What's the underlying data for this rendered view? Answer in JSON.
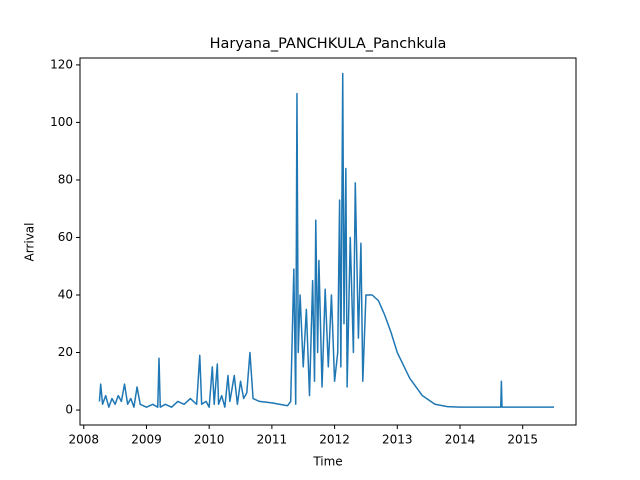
{
  "chart_data": {
    "type": "line",
    "title": "Haryana_PANCHKULA_Panchkula",
    "xlabel": "Time",
    "ylabel": "Arrival",
    "color": "#1f77b4",
    "grid": false,
    "xlim": [
      2007.94,
      2015.85
    ],
    "xticks": [
      2008,
      2009,
      2010,
      2011,
      2012,
      2013,
      2014,
      2015
    ],
    "ylim": [
      -5.2,
      122.4
    ],
    "yticks": [
      0,
      20,
      40,
      60,
      80,
      100,
      120
    ],
    "x": [
      2008.25,
      2008.27,
      2008.3,
      2008.35,
      2008.4,
      2008.45,
      2008.5,
      2008.55,
      2008.6,
      2008.65,
      2008.7,
      2008.75,
      2008.8,
      2008.85,
      2008.9,
      2009.0,
      2009.1,
      2009.18,
      2009.2,
      2009.22,
      2009.3,
      2009.4,
      2009.5,
      2009.6,
      2009.7,
      2009.8,
      2009.85,
      2009.88,
      2009.95,
      2010.0,
      2010.05,
      2010.08,
      2010.13,
      2010.15,
      2010.2,
      2010.25,
      2010.3,
      2010.33,
      2010.4,
      2010.45,
      2010.5,
      2010.55,
      2010.6,
      2010.65,
      2010.7,
      2010.8,
      2011.0,
      2011.25,
      2011.3,
      2011.35,
      2011.38,
      2011.4,
      2011.42,
      2011.45,
      2011.5,
      2011.55,
      2011.6,
      2011.65,
      2011.68,
      2011.7,
      2011.73,
      2011.75,
      2011.8,
      2011.85,
      2011.9,
      2011.95,
      2012.0,
      2012.05,
      2012.08,
      2012.1,
      2012.13,
      2012.15,
      2012.18,
      2012.2,
      2012.25,
      2012.3,
      2012.33,
      2012.38,
      2012.42,
      2012.45,
      2012.5,
      2012.6,
      2012.7,
      2012.8,
      2012.9,
      2013.0,
      2013.2,
      2013.4,
      2013.6,
      2013.8,
      2014.0,
      2014.65,
      2014.66,
      2014.67,
      2015.5
    ],
    "y": [
      3,
      9,
      2,
      5,
      1,
      4,
      2,
      5,
      3,
      9,
      2,
      4,
      1,
      8,
      2,
      1,
      2,
      1,
      18,
      1,
      2,
      1,
      3,
      2,
      4,
      2,
      19,
      2,
      3,
      1,
      15,
      2,
      16,
      2,
      5,
      1,
      12,
      3,
      12,
      2,
      10,
      4,
      6,
      20,
      4,
      3,
      2.5,
      1.5,
      3,
      49,
      2,
      110,
      20,
      40,
      15,
      35,
      5,
      45,
      10,
      66,
      20,
      52,
      8,
      42,
      15,
      40,
      10,
      20,
      73,
      15,
      117,
      30,
      84,
      8,
      60,
      20,
      79,
      25,
      58,
      10,
      40,
      40,
      38,
      33,
      27,
      20,
      11,
      5,
      2,
      1.2,
      1,
      1,
      10,
      1,
      1
    ]
  }
}
